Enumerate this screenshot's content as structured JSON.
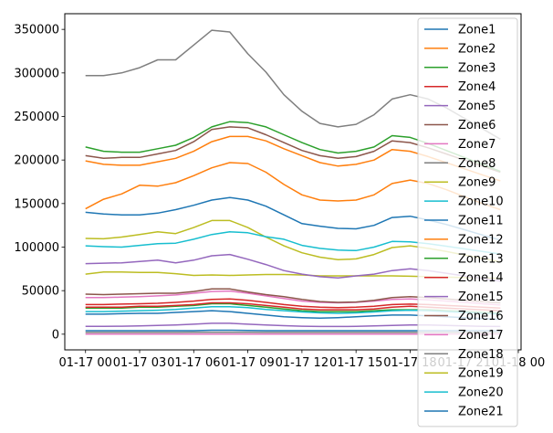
{
  "chart_data": {
    "type": "line",
    "title": "",
    "xlabel": "",
    "ylabel": "",
    "x": [
      "01-17 00:00",
      "01-17 01:00",
      "01-17 02:00",
      "01-17 03:00",
      "01-17 04:00",
      "01-17 05:00",
      "01-17 06:00",
      "01-17 07:00",
      "01-17 08:00",
      "01-17 09:00",
      "01-17 10:00",
      "01-17 11:00",
      "01-17 12:00",
      "01-17 13:00",
      "01-17 14:00",
      "01-17 15:00",
      "01-17 16:00",
      "01-17 17:00",
      "01-17 18:00",
      "01-17 19:00",
      "01-17 20:00",
      "01-17 21:00",
      "01-17 22:00",
      "01-17 23:00"
    ],
    "x_ticks": [
      "01-17 00",
      "01-17 03",
      "01-17 06",
      "01-17 09",
      "01-17 12",
      "01-17 15",
      "01-17 18",
      "01-17 21",
      "01-18 00"
    ],
    "ylim": [
      -18000,
      368000
    ],
    "y_ticks": [
      0,
      50000,
      100000,
      150000,
      200000,
      250000,
      300000,
      350000
    ],
    "y_tick_labels": [
      "0",
      "50000",
      "100000",
      "150000",
      "200000",
      "250000",
      "300000",
      "350000"
    ],
    "grid": false,
    "legend_position": "upper right",
    "series": [
      {
        "name": "Zone1",
        "color": "#1f77b4",
        "values": [
          23000,
          23000,
          23500,
          24000,
          24000,
          25000,
          26000,
          27000,
          26000,
          24000,
          22000,
          20000,
          19000,
          18500,
          19000,
          20000,
          21000,
          22000,
          22000,
          21000,
          20000,
          19000,
          18000,
          17000
        ]
      },
      {
        "name": "Zone2",
        "color": "#ff7f0e",
        "values": [
          144000,
          155000,
          161000,
          171000,
          170000,
          174000,
          182000,
          191000,
          197000,
          196000,
          186000,
          172000,
          160000,
          154000,
          153000,
          154000,
          160000,
          173000,
          177000,
          173000,
          166000,
          158000,
          150000,
          143000
        ]
      },
      {
        "name": "Zone3",
        "color": "#2ca02c",
        "values": [
          30000,
          30000,
          30000,
          31000,
          31000,
          32000,
          33000,
          35000,
          35000,
          33000,
          31000,
          29000,
          27000,
          26000,
          26000,
          26000,
          27000,
          28000,
          28000,
          28000,
          27000,
          26000,
          25000,
          24000
        ]
      },
      {
        "name": "Zone4",
        "color": "#d62728",
        "values": [
          31000,
          31000,
          31000,
          32000,
          32000,
          33000,
          34000,
          36000,
          36000,
          35000,
          33000,
          31000,
          29000,
          28000,
          28000,
          28000,
          29000,
          31000,
          32000,
          31000,
          30000,
          29000,
          28000,
          27000
        ]
      },
      {
        "name": "Zone5",
        "color": "#9467bd",
        "values": [
          9000,
          9000,
          9200,
          9500,
          10000,
          10500,
          11500,
          12500,
          12500,
          11500,
          10500,
          9800,
          9200,
          8900,
          8800,
          9000,
          9500,
          10000,
          10500,
          10500,
          10000,
          9500,
          9000,
          8800
        ]
      },
      {
        "name": "Zone6",
        "color": "#8c564b",
        "values": [
          205000,
          202000,
          203000,
          203000,
          207000,
          211000,
          221000,
          235000,
          238000,
          237000,
          229000,
          220000,
          211000,
          205000,
          202000,
          204000,
          210000,
          222000,
          220000,
          214000,
          207000,
          200000,
          193000,
          186000
        ]
      },
      {
        "name": "Zone7",
        "color": "#e377c2",
        "values": [
          42000,
          42000,
          42500,
          43000,
          44000,
          45000,
          47000,
          49000,
          49500,
          47000,
          44000,
          41000,
          38000,
          36500,
          36000,
          36500,
          38000,
          40000,
          40500,
          39500,
          38000,
          36500,
          35000,
          33500
        ]
      },
      {
        "name": "Zone8",
        "color": "#7f7f7f",
        "values": [
          2000,
          2000,
          2000,
          2000,
          2000,
          2000,
          2100,
          2200,
          2200,
          2100,
          2000,
          2000,
          2000,
          2000,
          2000,
          2000,
          2000,
          2000,
          2000,
          2000,
          2000,
          2000,
          2000,
          2000
        ]
      },
      {
        "name": "Zone9",
        "color": "#bcbd22",
        "values": [
          69000,
          71500,
          71500,
          71000,
          71000,
          69500,
          67500,
          68000,
          67500,
          68000,
          68500,
          68500,
          68000,
          67000,
          67000,
          67000,
          67000,
          67000,
          66500,
          66000,
          65500,
          65000,
          64500,
          64000
        ]
      },
      {
        "name": "Zone10",
        "color": "#17becf",
        "values": [
          26000,
          26000,
          26500,
          27000,
          27500,
          28500,
          30000,
          31500,
          31500,
          30500,
          28500,
          27000,
          25500,
          24500,
          24000,
          24500,
          25500,
          27000,
          27500,
          27000,
          26000,
          25000,
          24000,
          23000
        ]
      },
      {
        "name": "Zone11",
        "color": "#1f77b4",
        "values": [
          140000,
          138000,
          137000,
          137000,
          139000,
          143000,
          148000,
          154000,
          157000,
          154000,
          147000,
          137000,
          127000,
          124000,
          121500,
          121000,
          125000,
          134000,
          135500,
          131000,
          126000,
          120000,
          114000,
          108000
        ]
      },
      {
        "name": "Zone12",
        "color": "#ff7f0e",
        "values": [
          199000,
          195000,
          194000,
          194000,
          198000,
          202000,
          210000,
          221000,
          227000,
          227000,
          222000,
          213000,
          205000,
          197000,
          193000,
          195000,
          200000,
          212000,
          210000,
          204000,
          197000,
          190000,
          183000,
          176000
        ]
      },
      {
        "name": "Zone13",
        "color": "#2ca02c",
        "values": [
          215000,
          210000,
          209000,
          209000,
          213000,
          217000,
          226000,
          238000,
          244000,
          243000,
          238000,
          229000,
          220000,
          212000,
          208000,
          210000,
          215000,
          228000,
          226000,
          219000,
          211000,
          203000,
          195000,
          187000
        ]
      },
      {
        "name": "Zone14",
        "color": "#d62728",
        "values": [
          34000,
          34000,
          34500,
          35000,
          35500,
          36500,
          38000,
          40000,
          40500,
          39000,
          36500,
          34000,
          32000,
          31000,
          30500,
          31000,
          32000,
          34000,
          34500,
          34000,
          33000,
          32000,
          31000,
          30000
        ]
      },
      {
        "name": "Zone15",
        "color": "#9467bd",
        "values": [
          81000,
          81500,
          82000,
          83500,
          85000,
          82000,
          85000,
          90000,
          91500,
          86000,
          80000,
          73000,
          69000,
          66000,
          64500,
          67000,
          69000,
          73000,
          75000,
          73000,
          70000,
          67000,
          64000,
          61000
        ]
      },
      {
        "name": "Zone16",
        "color": "#8c564b",
        "values": [
          46000,
          45500,
          46000,
          46500,
          47000,
          47000,
          49000,
          52000,
          52000,
          48500,
          45500,
          43000,
          40000,
          37500,
          36500,
          37000,
          39000,
          42000,
          43000,
          42000,
          40500,
          39000,
          37500,
          36000
        ]
      },
      {
        "name": "Zone17",
        "color": "#e377c2",
        "values": [
          0,
          0,
          0,
          0,
          0,
          0,
          0,
          0,
          0,
          0,
          0,
          0,
          0,
          0,
          0,
          0,
          0,
          0,
          0,
          0,
          0,
          0,
          0,
          0
        ]
      },
      {
        "name": "Zone18",
        "color": "#7f7f7f",
        "values": [
          297000,
          297000,
          300000,
          306000,
          315000,
          315000,
          332000,
          349000,
          347000,
          322000,
          301000,
          275000,
          256000,
          242000,
          238000,
          241000,
          252000,
          270000,
          275000,
          270000,
          260000,
          248000,
          236000,
          224000
        ]
      },
      {
        "name": "Zone19",
        "color": "#bcbd22",
        "values": [
          110000,
          109500,
          111500,
          114500,
          117500,
          115500,
          122500,
          130500,
          130500,
          122500,
          111500,
          101500,
          93500,
          88500,
          85500,
          86500,
          91500,
          99500,
          101500,
          98500,
          95000,
          91000,
          87000,
          83000
        ]
      },
      {
        "name": "Zone20",
        "color": "#17becf",
        "values": [
          101500,
          100500,
          100000,
          102000,
          104000,
          104500,
          109000,
          114500,
          117500,
          116500,
          112000,
          109000,
          102000,
          98500,
          96500,
          96000,
          100000,
          106500,
          106000,
          104000,
          101000,
          98000,
          95000,
          92000
        ]
      },
      {
        "name": "Zone21",
        "color": "#1f77b4",
        "values": [
          4000,
          4000,
          4000,
          4000,
          4000,
          4000,
          4000,
          4500,
          4500,
          4200,
          4000,
          4000,
          4000,
          4000,
          4000,
          4000,
          4000,
          4000,
          4000,
          4000,
          4000,
          4000,
          4000,
          4000
        ]
      }
    ]
  }
}
